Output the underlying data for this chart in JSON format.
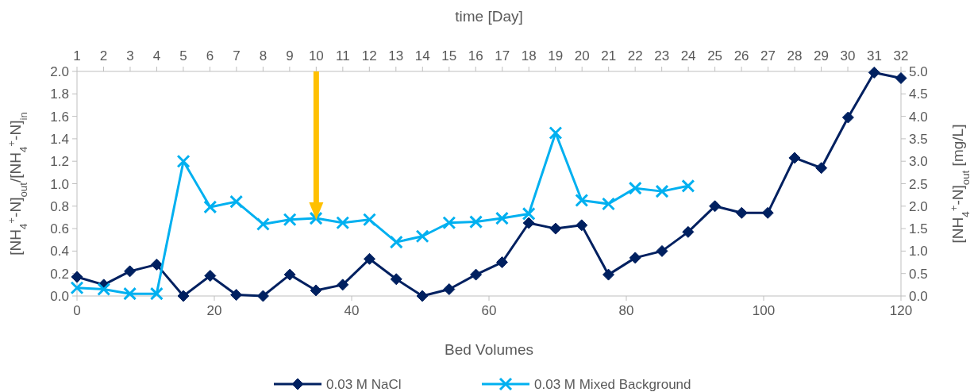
{
  "chart_data": {
    "type": "line",
    "xlabel": "Bed Volumes",
    "x2label": "time [Day]",
    "ylabel": "[NH$_{4}$$^{+}$-N]$_{out}$/[NH$_{4}$$^{+}$-N]$_{in}$",
    "y2label": "[NH$_{4}$$^{+}$-N]$_{out}$ [mg/L]",
    "xlim": [
      0,
      120
    ],
    "xticks": [
      0,
      20,
      40,
      60,
      80,
      100,
      120
    ],
    "x2lim": [
      1,
      32
    ],
    "x2ticks": [
      1,
      2,
      3,
      4,
      5,
      6,
      7,
      8,
      9,
      10,
      11,
      12,
      13,
      14,
      15,
      16,
      17,
      18,
      19,
      20,
      21,
      22,
      23,
      24,
      25,
      26,
      27,
      28,
      29,
      30,
      31,
      32
    ],
    "ylim": [
      0,
      2
    ],
    "yticks": [
      {
        "value": 0,
        "label": "0.0"
      },
      {
        "value": 0.2,
        "label": "0.2"
      },
      {
        "value": 0.4,
        "label": "0.4"
      },
      {
        "value": 0.6,
        "label": "0.6"
      },
      {
        "value": 0.8,
        "label": "0.8"
      },
      {
        "value": 1,
        "label": "1.0"
      },
      {
        "value": 1.2,
        "label": "1.2"
      },
      {
        "value": 1.4,
        "label": "1.4"
      },
      {
        "value": 1.6,
        "label": "1.6"
      },
      {
        "value": 1.8,
        "label": "1.8"
      },
      {
        "value": 2,
        "label": "2.0"
      }
    ],
    "y2lim": [
      0,
      5
    ],
    "y2ticks": [
      {
        "value": 0,
        "label": "0.0"
      },
      {
        "value": 0.5,
        "label": "0.5"
      },
      {
        "value": 1,
        "label": "1.0"
      },
      {
        "value": 1.5,
        "label": "1.5"
      },
      {
        "value": 2,
        "label": "2.0"
      },
      {
        "value": 2.5,
        "label": "2.5"
      },
      {
        "value": 3,
        "label": "3.0"
      },
      {
        "value": 3.5,
        "label": "3.5"
      },
      {
        "value": 4,
        "label": "4.0"
      },
      {
        "value": 4.5,
        "label": "4.5"
      },
      {
        "value": 5,
        "label": "5.0"
      }
    ],
    "x": [
      0,
      3.9,
      7.7,
      11.6,
      15.5,
      19.4,
      23.2,
      27.1,
      31,
      34.8,
      38.7,
      42.6,
      46.5,
      50.3,
      54.2,
      58.1,
      61.9,
      65.8,
      69.7,
      73.5,
      77.4,
      81.3,
      85.2,
      89,
      92.9,
      96.8,
      100.6,
      104.5,
      108.4,
      112.3,
      116.1,
      120
    ],
    "grid": false,
    "legend": "bottom",
    "series": [
      {
        "name": "0.03 M NaCl",
        "color": "#002060",
        "marker": "diamond",
        "values": [
          0.17,
          0.1,
          0.22,
          0.28,
          0.0,
          0.18,
          0.01,
          0.0,
          0.19,
          0.05,
          0.1,
          0.33,
          0.15,
          0.0,
          0.06,
          0.19,
          0.3,
          0.65,
          0.6,
          0.63,
          0.19,
          0.34,
          0.4,
          0.57,
          0.8,
          0.74,
          0.74,
          1.23,
          1.14,
          1.59,
          1.99,
          1.94
        ]
      },
      {
        "name": "0.03 M Mixed Background",
        "color": "#00b0f0",
        "marker": "cross",
        "axis": "y2",
        "values": [
          0.18,
          0.15,
          0.05,
          0.05,
          3.0,
          1.98,
          2.1,
          1.6,
          1.7,
          1.73,
          1.63,
          1.7,
          1.2,
          1.33,
          1.63,
          1.65,
          1.73,
          1.83,
          3.63,
          2.13,
          2.05,
          2.4,
          2.33,
          2.45,
          null,
          null,
          null,
          null,
          null,
          null,
          null,
          null
        ]
      }
    ]
  }
}
